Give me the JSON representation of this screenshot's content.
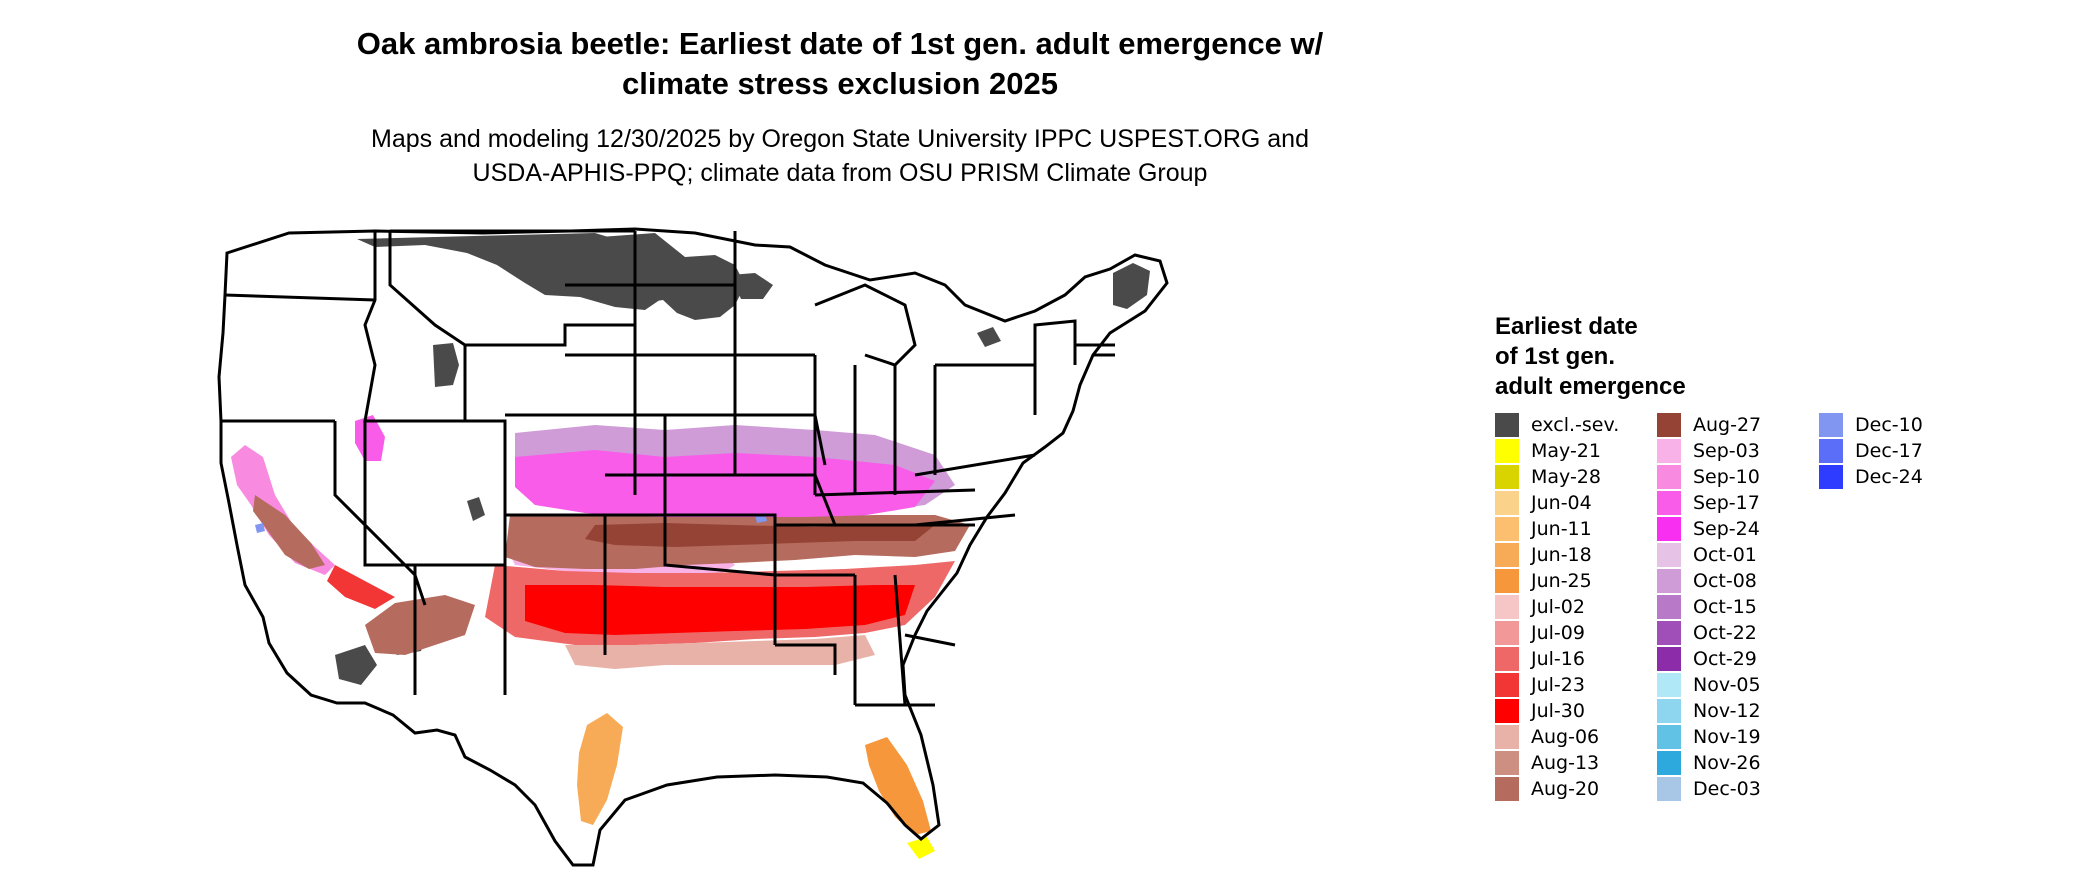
{
  "title": {
    "line1": "Oak ambrosia beetle: Earliest date of 1st gen. adult emergence w/",
    "line2": "climate stress exclusion 2025"
  },
  "subtitle": {
    "line1": "Maps and modeling 12/30/2025 by Oregon State University IPPC USPEST.ORG and",
    "line2": "USDA-APHIS-PPQ; climate data from OSU PRISM Climate Group"
  },
  "legend": {
    "title_line1": "Earliest date",
    "title_line2": "of 1st gen.",
    "title_line3": "adult emergence",
    "columns": [
      [
        {
          "label": "excl.-sev.",
          "color": "#4a4a4a"
        },
        {
          "label": "May-21",
          "color": "#ffff00"
        },
        {
          "label": "May-28",
          "color": "#d9d400"
        },
        {
          "label": "Jun-04",
          "color": "#fbd28a"
        },
        {
          "label": "Jun-11",
          "color": "#fbbf6f"
        },
        {
          "label": "Jun-18",
          "color": "#f8ab56"
        },
        {
          "label": "Jun-25",
          "color": "#f6973c"
        },
        {
          "label": "Jul-02",
          "color": "#f6c6c6"
        },
        {
          "label": "Jul-09",
          "color": "#f29898"
        },
        {
          "label": "Jul-16",
          "color": "#ef6868"
        },
        {
          "label": "Jul-23",
          "color": "#f23636"
        },
        {
          "label": "Jul-30",
          "color": "#ff0000"
        },
        {
          "label": "Aug-06",
          "color": "#e8b2a8"
        },
        {
          "label": "Aug-13",
          "color": "#cd8f82"
        },
        {
          "label": "Aug-20",
          "color": "#b56b5d"
        }
      ],
      [
        {
          "label": "Aug-27",
          "color": "#954335"
        },
        {
          "label": "Sep-03",
          "color": "#f8b2e8"
        },
        {
          "label": "Sep-10",
          "color": "#f88ae0"
        },
        {
          "label": "Sep-17",
          "color": "#f85ce8"
        },
        {
          "label": "Sep-24",
          "color": "#f82ef0"
        },
        {
          "label": "Oct-01",
          "color": "#e6c3e6"
        },
        {
          "label": "Oct-08",
          "color": "#cf9cd8"
        },
        {
          "label": "Oct-15",
          "color": "#b87ac8"
        },
        {
          "label": "Oct-22",
          "color": "#a04eb8"
        },
        {
          "label": "Oct-29",
          "color": "#8c2ca8"
        },
        {
          "label": "Nov-05",
          "color": "#b0e8f8"
        },
        {
          "label": "Nov-12",
          "color": "#8ed6ef"
        },
        {
          "label": "Nov-19",
          "color": "#62c2e6"
        },
        {
          "label": "Nov-26",
          "color": "#2ea9de"
        },
        {
          "label": "Dec-03",
          "color": "#a8c6e6"
        }
      ],
      [
        {
          "label": "Dec-10",
          "color": "#8096f0"
        },
        {
          "label": "Dec-17",
          "color": "#5a6ef8"
        },
        {
          "label": "Dec-24",
          "color": "#2e3cff"
        }
      ]
    ]
  },
  "map": {
    "colors": {
      "excluded": "#4a4a4a",
      "white": "#ffffff",
      "pink": "#f85ce8",
      "light_pink": "#f8b2e8",
      "lavender": "#cf9cd8",
      "brown": "#954335",
      "brown2": "#b56b5d",
      "red": "#ff0000",
      "red2": "#f23636",
      "red3": "#ef6868",
      "salmon": "#e8b2a8",
      "orange": "#f8ab56",
      "orange2": "#f6973c",
      "yellow": "#ffff00",
      "blue": "#8096f0",
      "outline": "#000000"
    }
  }
}
